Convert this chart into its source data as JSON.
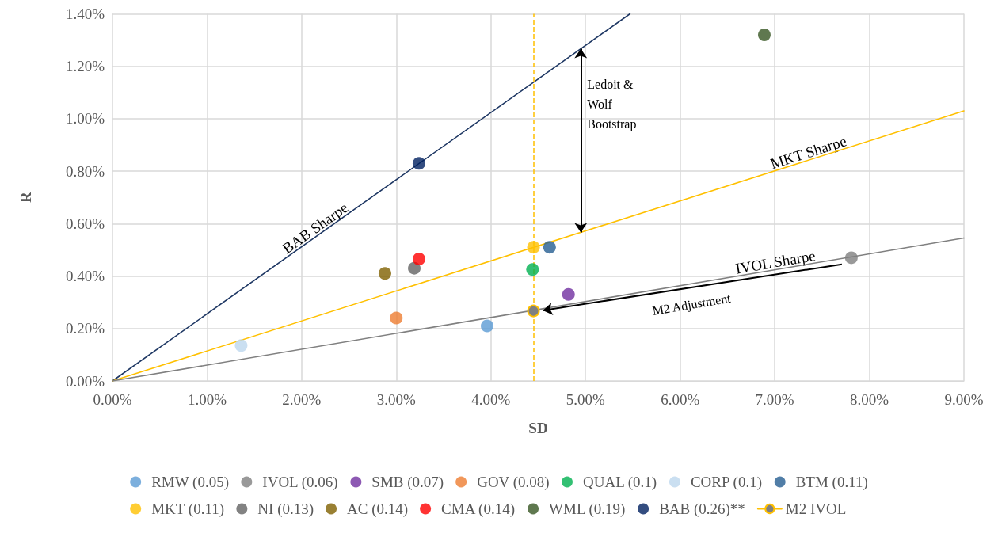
{
  "chart_data": {
    "type": "scatter",
    "xlabel": "SD",
    "ylabel": "R",
    "xlim": [
      0,
      9
    ],
    "ylim": [
      0,
      1.4
    ],
    "xticks": [
      {
        "value": 0,
        "label": "0.00%"
      },
      {
        "value": 1,
        "label": "1.00%"
      },
      {
        "value": 2,
        "label": "2.00%"
      },
      {
        "value": 3,
        "label": "3.00%"
      },
      {
        "value": 4,
        "label": "4.00%"
      },
      {
        "value": 5,
        "label": "5.00%"
      },
      {
        "value": 6,
        "label": "6.00%"
      },
      {
        "value": 7,
        "label": "7.00%"
      },
      {
        "value": 8,
        "label": "8.00%"
      },
      {
        "value": 9,
        "label": "9.00%"
      }
    ],
    "yticks": [
      {
        "value": 0,
        "label": "0.00%"
      },
      {
        "value": 0.2,
        "label": "0.20%"
      },
      {
        "value": 0.4,
        "label": "0.40%"
      },
      {
        "value": 0.6,
        "label": "0.60%"
      },
      {
        "value": 0.8,
        "label": "0.80%"
      },
      {
        "value": 1,
        "label": "1.00%"
      },
      {
        "value": 1.2,
        "label": "1.20%"
      },
      {
        "value": 1.4,
        "label": "1.40%"
      }
    ],
    "grid": true,
    "legend": "bottom",
    "marker": "circle",
    "series": [
      {
        "name": "RMW (0.05)",
        "color": "#5b9bd5",
        "x": [
          3.96
        ],
        "values": [
          0.21
        ]
      },
      {
        "name": "IVOL (0.06)",
        "color": "#808080",
        "x": [
          7.81
        ],
        "values": [
          0.47
        ]
      },
      {
        "name": "SMB (0.07)",
        "color": "#7030a0",
        "x": [
          4.82
        ],
        "values": [
          0.33
        ]
      },
      {
        "name": "GOV (0.08)",
        "color": "#ed7d31",
        "x": [
          3.0
        ],
        "values": [
          0.24
        ]
      },
      {
        "name": "QUAL (0.1)",
        "color": "#00b050",
        "x": [
          4.44
        ],
        "values": [
          0.425
        ]
      },
      {
        "name": "CORP (0.1)",
        "color": "#bdd7ee",
        "x": [
          1.36
        ],
        "values": [
          0.135
        ]
      },
      {
        "name": "BTM (0.11)",
        "color": "#255e91",
        "x": [
          4.62
        ],
        "values": [
          0.51
        ]
      },
      {
        "name": "MKT (0.11)",
        "color": "#ffc000",
        "x": [
          4.45
        ],
        "values": [
          0.51
        ]
      },
      {
        "name": "NI (0.13)",
        "color": "#636363",
        "x": [
          3.19
        ],
        "values": [
          0.43
        ]
      },
      {
        "name": "AC (0.14)",
        "color": "#7f6000",
        "x": [
          2.88
        ],
        "values": [
          0.41
        ]
      },
      {
        "name": "CMA (0.14)",
        "color": "#ff0000",
        "x": [
          3.24
        ],
        "values": [
          0.465
        ]
      },
      {
        "name": "WML (0.19)",
        "color": "#375623",
        "x": [
          6.89
        ],
        "values": [
          1.32
        ]
      },
      {
        "name": "BAB (0.26)**",
        "color": "#002060",
        "x": [
          3.24
        ],
        "values": [
          0.83
        ]
      },
      {
        "name": "M2 IVOL",
        "type": "line",
        "marker": "circle",
        "color": "#ffc000",
        "x": [
          4.45
        ],
        "values": [
          0.267
        ]
      },
      {
        "name": "BAB Sharpe",
        "type": "line",
        "marker": "none",
        "color": "#1f3864",
        "x": [
          0,
          5.47
        ],
        "values": [
          0,
          1.4
        ]
      },
      {
        "name": "MKT Sharpe",
        "type": "line",
        "marker": "none",
        "color": "#ffc000",
        "x": [
          0,
          9
        ],
        "values": [
          0,
          1.03
        ]
      },
      {
        "name": "IVOL Sharpe",
        "type": "line",
        "marker": "none",
        "color": "#808080",
        "x": [
          0,
          9
        ],
        "values": [
          0,
          0.545
        ]
      }
    ],
    "ref_lines": [
      {
        "axis": "x",
        "value": 4.45,
        "color": "#ffc000",
        "line_style": "dashed"
      }
    ],
    "annotations": [
      "Ledoit & Wolf Bootstrap",
      "M2 Adjustment"
    ]
  }
}
